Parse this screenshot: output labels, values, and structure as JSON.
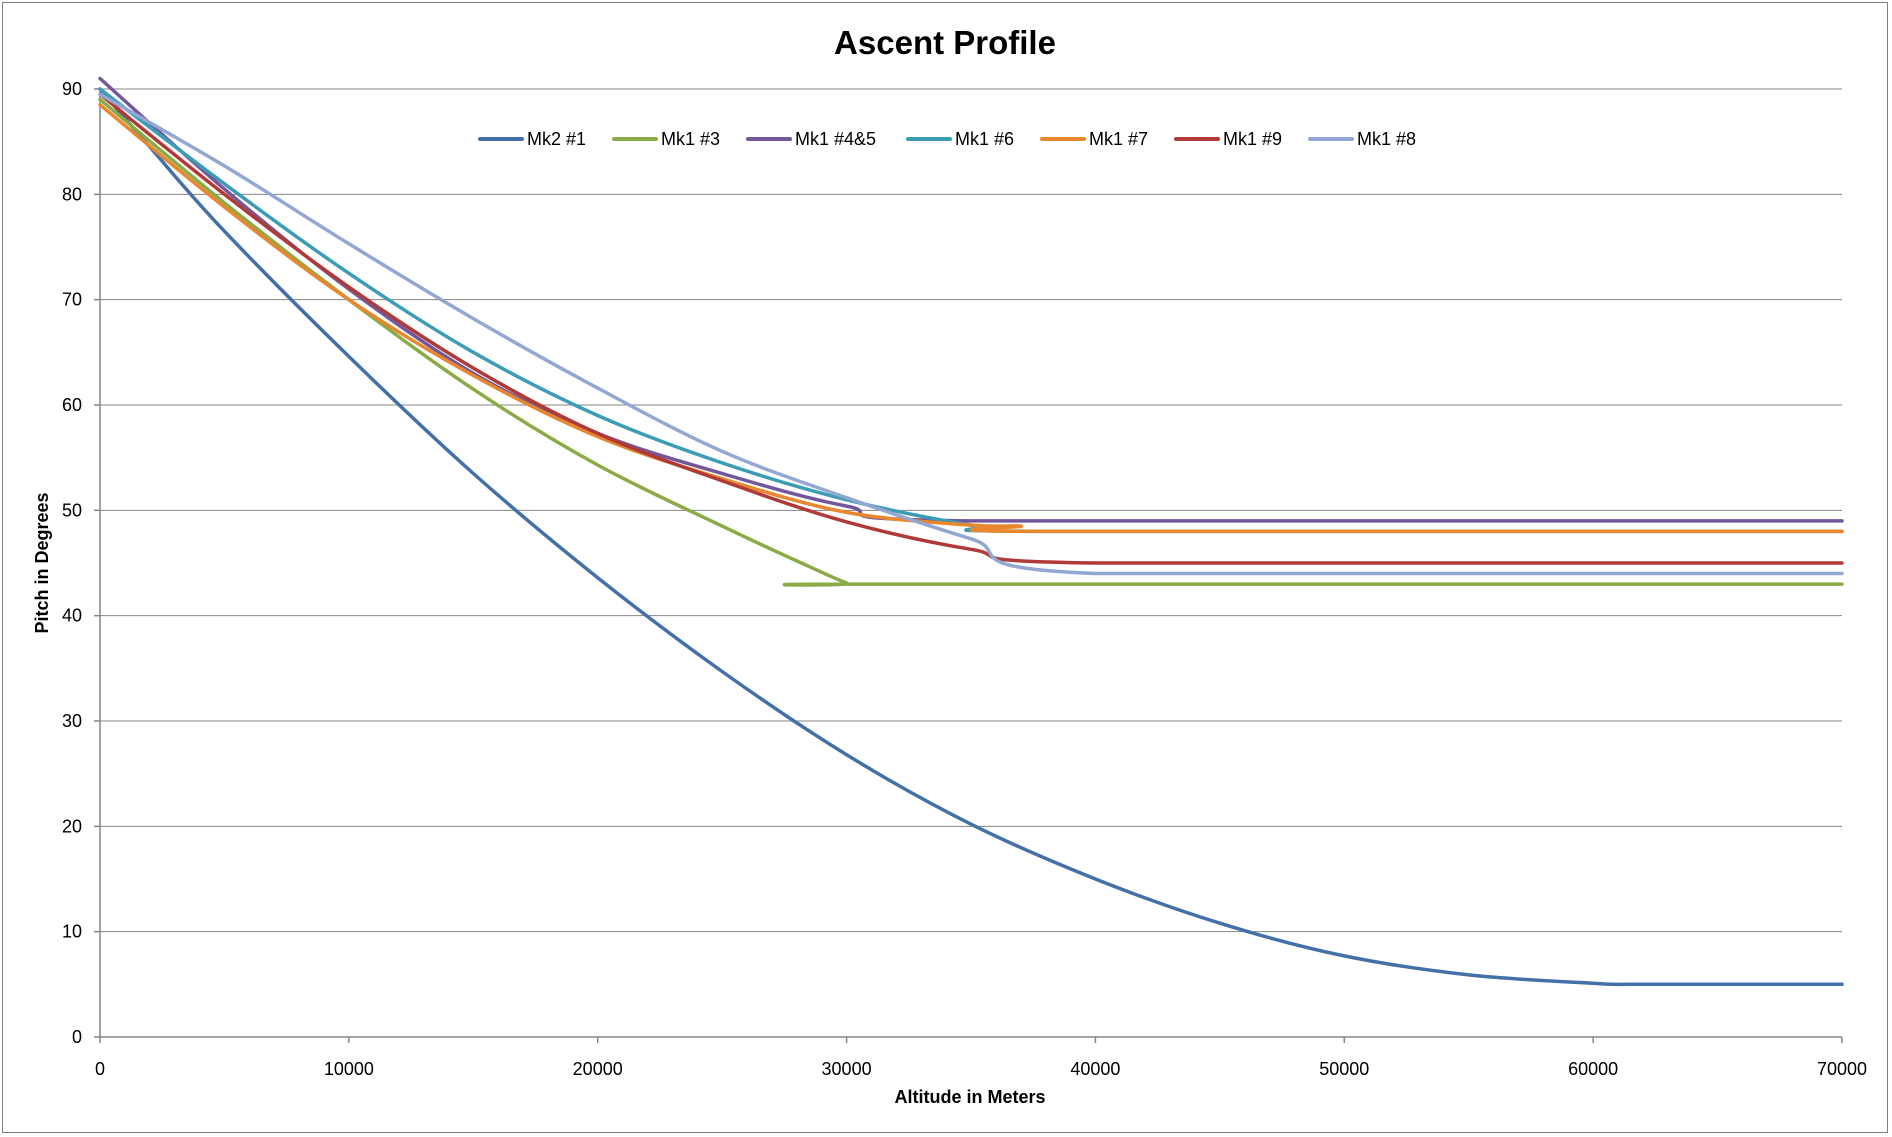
{
  "chart_data": {
    "type": "line",
    "title": "Ascent Profile",
    "xlabel": "Altitude in Meters",
    "ylabel": "Pitch in Degrees",
    "xlim": [
      0,
      70000
    ],
    "ylim": [
      0,
      90
    ],
    "xticks": [
      0,
      10000,
      20000,
      30000,
      40000,
      50000,
      60000,
      70000
    ],
    "yticks": [
      0,
      10,
      20,
      30,
      40,
      50,
      60,
      70,
      80,
      90
    ],
    "grid": "horizontal",
    "legend_position": "top",
    "series": [
      {
        "name": "Mk2 #1",
        "color": "#4470a8",
        "points": [
          [
            0,
            90
          ],
          [
            2000,
            84.5
          ],
          [
            5000,
            76.5
          ],
          [
            10000,
            64.6
          ],
          [
            15000,
            53.5
          ],
          [
            20000,
            43.6
          ],
          [
            25000,
            34.7
          ],
          [
            30000,
            26.8
          ],
          [
            35000,
            20.2
          ],
          [
            40000,
            15
          ],
          [
            45000,
            10.8
          ],
          [
            50000,
            7.7
          ],
          [
            55000,
            5.9
          ],
          [
            60000,
            5.1
          ],
          [
            62000,
            5
          ],
          [
            70000,
            5
          ]
        ]
      },
      {
        "name": "Mk1 #3",
        "color": "#8aab45",
        "points": [
          [
            0,
            89
          ],
          [
            5000,
            79.2
          ],
          [
            10000,
            70
          ],
          [
            15000,
            61.5
          ],
          [
            20000,
            54.3
          ],
          [
            25000,
            48.5
          ],
          [
            28000,
            45.2
          ],
          [
            30000,
            43.1
          ],
          [
            30500,
            43
          ],
          [
            70000,
            43
          ]
        ]
      },
      {
        "name": "Mk1 #4&5",
        "color": "#74579a",
        "points": [
          [
            0,
            91
          ],
          [
            5000,
            80.5
          ],
          [
            10000,
            71
          ],
          [
            15000,
            63
          ],
          [
            20000,
            57.3
          ],
          [
            25000,
            53.5
          ],
          [
            30000,
            50.4
          ],
          [
            35000,
            49
          ],
          [
            70000,
            49
          ]
        ]
      },
      {
        "name": "Mk1 #6",
        "color": "#3c9cb6",
        "points": [
          [
            0,
            90
          ],
          [
            5000,
            81
          ],
          [
            10000,
            72.5
          ],
          [
            15000,
            65
          ],
          [
            20000,
            59
          ],
          [
            25000,
            54.5
          ],
          [
            30000,
            51
          ],
          [
            35000,
            48.6
          ],
          [
            38000,
            48
          ],
          [
            70000,
            48
          ]
        ]
      },
      {
        "name": "Mk1 #7",
        "color": "#e8872d",
        "points": [
          [
            0,
            88.5
          ],
          [
            5000,
            78.8
          ],
          [
            10000,
            70
          ],
          [
            15000,
            62.8
          ],
          [
            20000,
            57
          ],
          [
            25000,
            53
          ],
          [
            30000,
            49.8
          ],
          [
            35000,
            48.6
          ],
          [
            37000,
            48.5
          ],
          [
            37500,
            48
          ],
          [
            70000,
            48
          ]
        ]
      },
      {
        "name": "Mk1 #9",
        "color": "#b03a38",
        "points": [
          [
            0,
            89.5
          ],
          [
            5000,
            80
          ],
          [
            10000,
            71.2
          ],
          [
            15000,
            63.5
          ],
          [
            20000,
            57.3
          ],
          [
            25000,
            52.8
          ],
          [
            30000,
            48.9
          ],
          [
            35000,
            46.3
          ],
          [
            40000,
            45
          ],
          [
            70000,
            45
          ]
        ]
      },
      {
        "name": "Mk1 #8",
        "color": "#92a8d2",
        "points": [
          [
            0,
            89.5
          ],
          [
            5000,
            82.7
          ],
          [
            10000,
            75.3
          ],
          [
            15000,
            68.2
          ],
          [
            20000,
            61.6
          ],
          [
            25000,
            55.6
          ],
          [
            30000,
            51.2
          ],
          [
            35000,
            47.3
          ],
          [
            40000,
            44
          ],
          [
            70000,
            44
          ]
        ]
      }
    ]
  }
}
